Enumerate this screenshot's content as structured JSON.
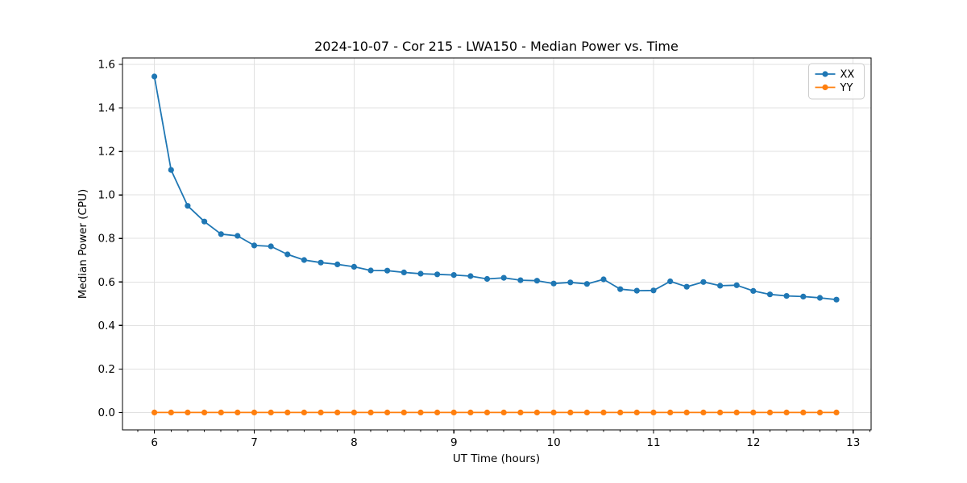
{
  "chart_data": {
    "type": "line",
    "title": "2024-10-07 - Cor 215 - LWA150 - Median Power vs. Time",
    "xlabel": "UT Time (hours)",
    "ylabel": "Median Power (CPU)",
    "xlim": [
      5.68,
      13.18
    ],
    "ylim": [
      -0.08,
      1.63
    ],
    "x_ticks": [
      6,
      7,
      8,
      9,
      10,
      11,
      12,
      13
    ],
    "y_ticks": [
      0.0,
      0.2,
      0.4,
      0.6,
      0.8,
      1.0,
      1.2,
      1.4,
      1.6
    ],
    "x_minor_step": 0.166667,
    "grid": true,
    "legend_position": "top-right",
    "x": [
      6.0,
      6.167,
      6.333,
      6.5,
      6.667,
      6.833,
      7.0,
      7.167,
      7.333,
      7.5,
      7.667,
      7.833,
      8.0,
      8.167,
      8.333,
      8.5,
      8.667,
      8.833,
      9.0,
      9.167,
      9.333,
      9.5,
      9.667,
      9.833,
      10.0,
      10.167,
      10.333,
      10.5,
      10.667,
      10.833,
      11.0,
      11.167,
      11.333,
      11.5,
      11.667,
      11.833,
      12.0,
      12.167,
      12.333,
      12.5,
      12.667,
      12.833
    ],
    "series": [
      {
        "name": "XX",
        "color": "#1f77b4",
        "values": [
          1.545,
          1.115,
          0.95,
          0.878,
          0.82,
          0.812,
          0.768,
          0.764,
          0.727,
          0.701,
          0.689,
          0.681,
          0.67,
          0.653,
          0.652,
          0.644,
          0.638,
          0.635,
          0.632,
          0.627,
          0.614,
          0.619,
          0.608,
          0.606,
          0.593,
          0.598,
          0.591,
          0.612,
          0.567,
          0.56,
          0.561,
          0.603,
          0.578,
          0.6,
          0.583,
          0.585,
          0.559,
          0.543,
          0.536,
          0.533,
          0.527,
          0.519
        ]
      },
      {
        "name": "YY",
        "color": "#ff7f0e",
        "values": [
          0.0,
          0.0,
          0.0,
          0.0,
          0.0,
          0.0,
          0.0,
          0.0,
          0.0,
          0.0,
          0.0,
          0.0,
          0.0,
          0.0,
          0.0,
          0.0,
          0.0,
          0.0,
          0.0,
          0.0,
          0.0,
          0.0,
          0.0,
          0.0,
          0.0,
          0.0,
          0.0,
          0.0,
          0.0,
          0.0,
          0.0,
          0.0,
          0.0,
          0.0,
          0.0,
          0.0,
          0.0,
          0.0,
          0.0,
          0.0,
          0.0,
          0.0
        ]
      }
    ]
  }
}
